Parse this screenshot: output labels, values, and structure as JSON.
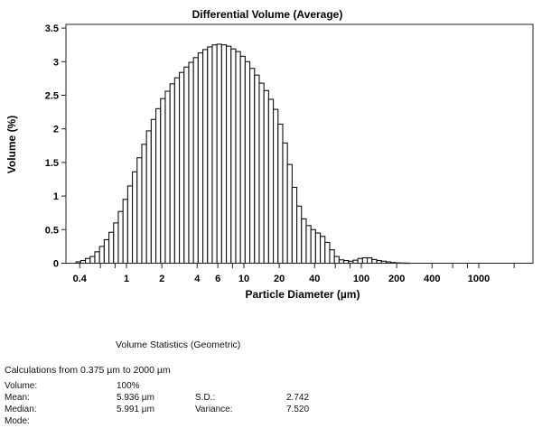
{
  "chart_data": {
    "type": "bar",
    "title": "Differential Volume (Average)",
    "xlabel": "Particle Diameter (µm)",
    "ylabel": "Volume (%)",
    "xscale": "log",
    "xlim": [
      0.36,
      2950
    ],
    "ylim": [
      0,
      3.5
    ],
    "grid": false,
    "ytick_labels": [
      "0",
      "0.5",
      "1",
      "1.5",
      "2",
      "2.5",
      "3",
      "3.5"
    ],
    "ytick_values": [
      0,
      0.5,
      1,
      1.5,
      2,
      2.5,
      3,
      3.5
    ],
    "xtick_labels": [
      "0.4",
      "1",
      "2",
      "4",
      "6",
      "10",
      "20",
      "40",
      "100",
      "200",
      "400",
      "1000"
    ],
    "xtick_values": [
      0.4,
      1,
      2,
      4,
      6,
      10,
      20,
      40,
      100,
      200,
      400,
      1000
    ],
    "bin_start_um": 0.372,
    "bin_log10_step": 0.04,
    "values": [
      0.02,
      0.04,
      0.07,
      0.1,
      0.17,
      0.25,
      0.35,
      0.46,
      0.6,
      0.77,
      0.95,
      1.15,
      1.36,
      1.57,
      1.77,
      1.97,
      2.14,
      2.3,
      2.45,
      2.56,
      2.67,
      2.76,
      2.84,
      2.92,
      2.99,
      3.06,
      3.13,
      3.18,
      3.22,
      3.25,
      3.26,
      3.25,
      3.23,
      3.19,
      3.15,
      3.08,
      3.0,
      2.9,
      2.8,
      2.68,
      2.57,
      2.44,
      2.29,
      2.07,
      1.79,
      1.47,
      1.13,
      0.85,
      0.66,
      0.56,
      0.5,
      0.45,
      0.4,
      0.31,
      0.2,
      0.1,
      0.05,
      0.04,
      0.03,
      0.045,
      0.07,
      0.08,
      0.08,
      0.055,
      0.04,
      0.03,
      0.02,
      0.01,
      0.005,
      0.003,
      0.002
    ]
  },
  "stats": {
    "title": "Volume Statistics (Geometric)",
    "calc": "Calculations from 0.375 µm to 2000 µm",
    "rows": [
      {
        "label": "Volume:",
        "value": "100%",
        "label2": "",
        "value2": ""
      },
      {
        "label": "Mean:",
        "value": "5.936 µm",
        "label2": "S.D.:",
        "value2": "2.742"
      },
      {
        "label": "Median:",
        "value": "5.991 µm",
        "label2": "Variance:",
        "value2": "7.520"
      },
      {
        "label": "Mode:",
        "value": "",
        "label2": "",
        "value2": ""
      }
    ]
  }
}
